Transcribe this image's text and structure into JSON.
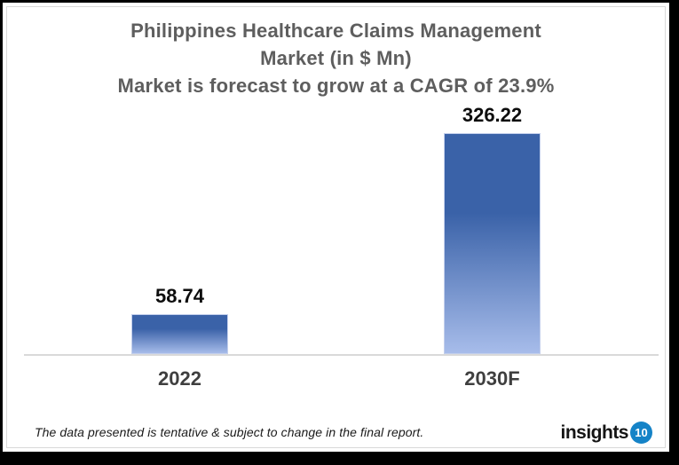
{
  "chart_data": {
    "type": "bar",
    "title": "Philippines Healthcare Claims Management Market (in $ Mn)",
    "subtitle": "Market is forecast to grow at a CAGR of 23.9%",
    "title_lines": [
      "Philippines Healthcare Claims Management",
      "Market (in $ Mn)",
      "Market is forecast to grow at a CAGR of 23.9%"
    ],
    "unit": "$ Mn",
    "cagr": "23.9%",
    "categories": [
      "2022",
      "2030F"
    ],
    "values": [
      58.74,
      326.22
    ],
    "value_labels": [
      "58.74",
      "326.22"
    ],
    "ylim": [
      0,
      326.22
    ],
    "grid": false,
    "legend": "none",
    "colors": {
      "bar_top": "#3a62a8",
      "bar_bottom": "#a7bcea",
      "title_text": "#5e5e5e",
      "category_text": "#3f3f3f",
      "value_text": "#0d0d0d",
      "axis_line": "#d9d9d9"
    }
  },
  "footer": {
    "note": "The data presented is tentative & subject to change in the final report.",
    "logo": {
      "text": "insights",
      "badge": "10",
      "badge_color": "#1583c7"
    }
  }
}
